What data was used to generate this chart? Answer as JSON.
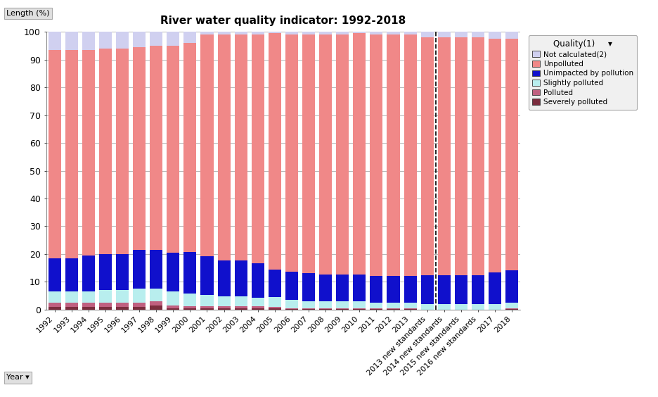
{
  "title": "River water quality indicator: 1992-2018",
  "ylabel": "Length (%)",
  "ylim": [
    0,
    100
  ],
  "categories": [
    "1992",
    "1993",
    "1994",
    "1995",
    "1996",
    "1997",
    "1998",
    "1999",
    "2000",
    "2001",
    "2002",
    "2003",
    "2004",
    "2005",
    "2006",
    "2007",
    "2008",
    "2009",
    "2010",
    "2011",
    "2012",
    "2013",
    "2013 new standards",
    "2014 new standards",
    "2015 new standards",
    "2016 new standards",
    "2017",
    "2018"
  ],
  "series": {
    "Severely polluted": [
      1.0,
      1.0,
      1.0,
      1.0,
      1.0,
      1.0,
      1.5,
      0.5,
      0.5,
      0.5,
      0.5,
      0.5,
      0.5,
      0.5,
      0.3,
      0.3,
      0.3,
      0.3,
      0.3,
      0.3,
      0.3,
      0.3,
      0.0,
      0.0,
      0.0,
      0.0,
      0.0,
      0.3
    ],
    "Polluted": [
      1.5,
      1.5,
      1.5,
      1.5,
      1.5,
      1.5,
      1.5,
      1.0,
      0.8,
      0.8,
      0.8,
      0.8,
      0.8,
      0.5,
      0.3,
      0.3,
      0.3,
      0.3,
      0.3,
      0.3,
      0.3,
      0.3,
      0.0,
      0.0,
      0.0,
      0.0,
      0.0,
      0.3
    ],
    "Slightly polluted": [
      4.0,
      4.0,
      4.0,
      4.5,
      4.5,
      5.0,
      4.5,
      5.0,
      4.5,
      4.0,
      3.5,
      3.5,
      3.0,
      3.5,
      3.0,
      2.5,
      2.5,
      2.5,
      2.5,
      2.0,
      2.0,
      2.0,
      2.0,
      2.0,
      2.0,
      2.0,
      2.0,
      2.0
    ],
    "Unimpacted by pollution": [
      12.0,
      12.0,
      13.0,
      13.0,
      13.0,
      14.0,
      14.0,
      14.0,
      15.0,
      14.0,
      13.0,
      13.0,
      12.5,
      10.0,
      10.0,
      10.0,
      9.5,
      9.5,
      9.5,
      9.5,
      9.5,
      9.5,
      10.5,
      10.5,
      10.5,
      10.5,
      11.5,
      11.5
    ],
    "Unpolluted": [
      75.0,
      75.0,
      74.0,
      74.0,
      74.0,
      73.0,
      73.5,
      74.5,
      75.2,
      79.7,
      81.2,
      81.2,
      82.2,
      85.0,
      85.4,
      85.9,
      86.4,
      86.4,
      86.9,
      86.9,
      86.9,
      86.9,
      85.5,
      85.5,
      85.5,
      85.5,
      84.0,
      83.4
    ],
    "Not calculated(2)": [
      6.5,
      6.5,
      6.5,
      6.0,
      6.0,
      5.5,
      5.0,
      5.0,
      4.0,
      1.0,
      1.0,
      1.0,
      1.0,
      0.5,
      1.0,
      1.0,
      1.0,
      1.0,
      0.5,
      1.0,
      1.0,
      1.0,
      2.0,
      2.0,
      2.0,
      2.0,
      2.5,
      2.5
    ]
  },
  "colors": {
    "Severely polluted": "#7b2d3e",
    "Polluted": "#c06080",
    "Slightly polluted": "#b8eeee",
    "Unimpacted by pollution": "#1010cc",
    "Unpolluted": "#f08888",
    "Not calculated(2)": "#d0d0f0"
  },
  "stack_order": [
    "Severely polluted",
    "Polluted",
    "Slightly polluted",
    "Unimpacted by pollution",
    "Unpolluted",
    "Not calculated(2)"
  ],
  "legend_order": [
    "Not calculated(2)",
    "Unpolluted",
    "Unimpacted by pollution",
    "Slightly polluted",
    "Polluted",
    "Severely polluted"
  ],
  "dashed_line_x": 22.5,
  "background_color": "#ffffff",
  "grid_color": "#999999"
}
